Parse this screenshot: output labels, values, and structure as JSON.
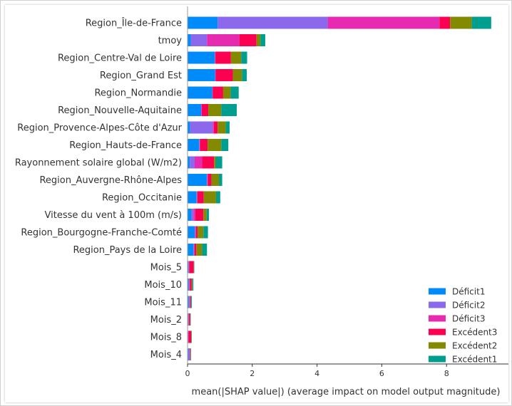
{
  "chart_data": {
    "type": "bar",
    "orientation": "horizontal",
    "stacked": true,
    "xlabel": "mean(|SHAP value|) (average impact on model output magnitude)",
    "ylabel": "",
    "xlim": [
      0,
      9.5
    ],
    "xticks": [
      0,
      2,
      4,
      6,
      8
    ],
    "grid": false,
    "legend_position": "bottom-right",
    "categories": [
      "Region_Île-de-France",
      "tmoy",
      "Region_Centre-Val de Loire",
      "Region_Grand Est",
      "Region_Normandie",
      "Region_Nouvelle-Aquitaine",
      "Region_Provence-Alpes-Côte d'Azur",
      "Region_Hauts-de-France",
      "Rayonnement solaire global (W/m2)",
      "Region_Auvergne-Rhône-Alpes",
      "Region_Occitanie",
      "Vitesse du vent à 100m (m/s)",
      "Region_Bourgogne-Franche-Comté",
      "Region_Pays de la Loire",
      "Mois_5",
      "Mois_10",
      "Mois_11",
      "Mois_2",
      "Mois_8",
      "Mois_4"
    ],
    "series": [
      {
        "name": "Déficit1",
        "color": "#008bfb",
        "values": [
          0.93,
          0.1,
          0.84,
          0.85,
          0.76,
          0.42,
          0.08,
          0.36,
          0.07,
          0.6,
          0.28,
          0.12,
          0.22,
          0.18,
          0.03,
          0.04,
          0.04,
          0.02,
          0.01,
          0.02
        ]
      },
      {
        "name": "Déficit2",
        "color": "#8c69ec",
        "values": [
          3.4,
          0.5,
          0.01,
          0.01,
          0.01,
          0.01,
          0.7,
          0.01,
          0.15,
          0.01,
          0.01,
          0.06,
          0.02,
          0.02,
          0.01,
          0.01,
          0.02,
          0.01,
          0.01,
          0.05
        ]
      },
      {
        "name": "Déficit3",
        "color": "#e72bb0",
        "values": [
          3.45,
          1.0,
          0.01,
          0.01,
          0.01,
          0.01,
          0.03,
          0.01,
          0.23,
          0.01,
          0.01,
          0.06,
          0.02,
          0.02,
          0.01,
          0.02,
          0.02,
          0.01,
          0.01,
          0.01
        ]
      },
      {
        "name": "Excédent3",
        "color": "#fc0052",
        "values": [
          0.33,
          0.53,
          0.48,
          0.53,
          0.32,
          0.2,
          0.12,
          0.24,
          0.37,
          0.12,
          0.2,
          0.25,
          0.05,
          0.05,
          0.14,
          0.06,
          0.02,
          0.04,
          0.08,
          0.01
        ]
      },
      {
        "name": "Excédent2",
        "color": "#838a00",
        "values": [
          0.67,
          0.12,
          0.32,
          0.28,
          0.23,
          0.4,
          0.25,
          0.42,
          0.05,
          0.23,
          0.38,
          0.1,
          0.18,
          0.18,
          0.01,
          0.02,
          0.01,
          0.01,
          0.01,
          0.01
        ]
      },
      {
        "name": "Excédent1",
        "color": "#009e8f",
        "values": [
          0.6,
          0.15,
          0.18,
          0.15,
          0.25,
          0.48,
          0.12,
          0.22,
          0.2,
          0.1,
          0.13,
          0.07,
          0.14,
          0.15,
          0.01,
          0.03,
          0.02,
          0.01,
          0.01,
          0.01
        ]
      }
    ]
  }
}
